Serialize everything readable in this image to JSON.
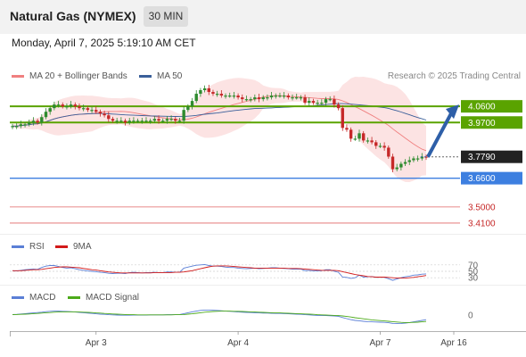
{
  "header": {
    "title": "Natural Gas (NYMEX)",
    "interval": "30 MIN"
  },
  "datetime": "Monday, April 7, 2025 5:19:10 AM CET",
  "legend": {
    "ma20": "MA 20 + Bollinger Bands",
    "ma50": "MA 50",
    "rsi": "RSI",
    "ma9": "9MA",
    "macd": "MACD",
    "macd_signal": "MACD Signal"
  },
  "credit": "Research © 2025 Trading Central",
  "colors": {
    "bullish": "#2e8b2e",
    "bearish": "#c62828",
    "band_fill": "#fbdada",
    "ma20": "#f08080",
    "ma50": "#3a5f9a",
    "resistance": "#5aa300",
    "support_main": "#3d7fe0",
    "support_minor": "#e06666",
    "last_price": "#222222",
    "target_arrow": "#2e5fa8"
  },
  "chart_data": [
    {
      "type": "candlestick",
      "x_labels": [
        "Apr 3",
        "Apr 4",
        "Apr 7",
        "Apr 16"
      ],
      "last_price": 3.779,
      "levels": [
        {
          "value": 4.06,
          "label": "4.0600",
          "role": "resistance"
        },
        {
          "value": 3.97,
          "label": "3.9700",
          "role": "resistance"
        },
        {
          "value": 3.779,
          "label": "3.7790",
          "role": "last"
        },
        {
          "value": 3.66,
          "label": "3.6600",
          "role": "support"
        },
        {
          "value": 3.5,
          "label": "3.5000",
          "role": "minor"
        },
        {
          "value": 3.41,
          "label": "3.4100",
          "role": "minor"
        }
      ],
      "target": {
        "from": 3.779,
        "to": 4.06
      },
      "close": [
        3.95,
        3.95,
        3.96,
        3.96,
        3.97,
        3.98,
        3.97,
        4.0,
        4.03,
        4.05,
        4.07,
        4.07,
        4.06,
        4.06,
        4.07,
        4.06,
        4.05,
        4.05,
        4.04,
        4.04,
        4.03,
        4.02,
        4.01,
        3.99,
        3.98,
        3.98,
        3.98,
        3.97,
        3.98,
        3.98,
        3.98,
        3.98,
        3.98,
        3.98,
        3.99,
        3.98,
        3.98,
        3.99,
        3.99,
        3.98,
        3.98,
        4.04,
        4.06,
        4.09,
        4.13,
        4.15,
        4.16,
        4.14,
        4.13,
        4.13,
        4.12,
        4.12,
        4.12,
        4.12,
        4.11,
        4.1,
        4.1,
        4.1,
        4.11,
        4.1,
        4.11,
        4.11,
        4.12,
        4.12,
        4.12,
        4.12,
        4.11,
        4.11,
        4.11,
        4.11,
        4.08,
        4.09,
        4.08,
        4.08,
        4.08,
        4.1,
        4.1,
        4.07,
        4.05,
        3.94,
        3.93,
        3.88,
        3.88,
        3.91,
        3.87,
        3.87,
        3.86,
        3.84,
        3.84,
        3.83,
        3.78,
        3.71,
        3.72,
        3.74,
        3.75,
        3.76,
        3.77,
        3.77,
        3.78,
        3.779
      ]
    },
    {
      "type": "line",
      "title": "RSI",
      "y_ticks": [
        70,
        50,
        30
      ],
      "series": [
        {
          "name": "RSI",
          "values": [
            52,
            51,
            53,
            55,
            56,
            57,
            56,
            62,
            66,
            68,
            68,
            65,
            62,
            60,
            61,
            58,
            55,
            53,
            51,
            50,
            49,
            47,
            46,
            44,
            43,
            44,
            44,
            43,
            46,
            47,
            46,
            45,
            46,
            46,
            47,
            46,
            46,
            48,
            48,
            47,
            47,
            60,
            63,
            66,
            69,
            70,
            71,
            68,
            66,
            66,
            65,
            63,
            62,
            62,
            60,
            59,
            58,
            59,
            60,
            58,
            59,
            60,
            61,
            61,
            60,
            59,
            58,
            57,
            57,
            57,
            52,
            53,
            51,
            51,
            52,
            55,
            55,
            50,
            47,
            32,
            31,
            28,
            30,
            38,
            32,
            33,
            34,
            31,
            32,
            31,
            27,
            22,
            26,
            30,
            33,
            35,
            38,
            39,
            41,
            42
          ]
        },
        {
          "name": "9MA",
          "values": [
            52,
            52,
            52,
            53,
            54,
            55,
            55,
            56,
            58,
            60,
            62,
            63,
            64,
            64,
            63,
            62,
            61,
            59,
            57,
            55,
            54,
            52,
            50,
            48,
            47,
            46,
            45,
            45,
            45,
            45,
            45,
            45,
            45,
            45,
            46,
            46,
            46,
            46,
            46,
            47,
            47,
            48,
            50,
            52,
            55,
            58,
            61,
            64,
            66,
            67,
            67,
            67,
            66,
            65,
            64,
            63,
            62,
            61,
            60,
            60,
            60,
            60,
            60,
            60,
            60,
            60,
            59,
            59,
            59,
            58,
            57,
            56,
            55,
            54,
            53,
            53,
            53,
            53,
            52,
            49,
            46,
            43,
            40,
            38,
            36,
            34,
            33,
            32,
            32,
            32,
            31,
            30,
            29,
            29,
            29,
            30,
            31,
            33,
            35,
            37
          ]
        }
      ]
    },
    {
      "type": "line",
      "title": "MACD",
      "y_ticks": [
        0
      ],
      "series": [
        {
          "name": "MACD",
          "values": [
            0.003,
            0.004,
            0.006,
            0.008,
            0.01,
            0.012,
            0.014,
            0.016,
            0.019,
            0.021,
            0.022,
            0.022,
            0.021,
            0.02,
            0.019,
            0.017,
            0.015,
            0.013,
            0.011,
            0.009,
            0.007,
            0.005,
            0.004,
            0.002,
            0.001,
            0.0,
            -0.001,
            -0.001,
            -0.001,
            0.0,
            0.0,
            0.0,
            0.0,
            0.001,
            0.001,
            0.001,
            0.001,
            0.002,
            0.002,
            0.002,
            0.003,
            0.008,
            0.013,
            0.018,
            0.022,
            0.026,
            0.028,
            0.028,
            0.027,
            0.026,
            0.024,
            0.022,
            0.021,
            0.019,
            0.017,
            0.016,
            0.015,
            0.014,
            0.013,
            0.012,
            0.011,
            0.011,
            0.01,
            0.009,
            0.009,
            0.008,
            0.007,
            0.006,
            0.005,
            0.004,
            0.002,
            0.001,
            -0.001,
            -0.002,
            -0.003,
            -0.003,
            -0.004,
            -0.005,
            -0.007,
            -0.014,
            -0.02,
            -0.026,
            -0.03,
            -0.032,
            -0.035,
            -0.037,
            -0.038,
            -0.039,
            -0.04,
            -0.041,
            -0.043,
            -0.047,
            -0.048,
            -0.047,
            -0.045,
            -0.042,
            -0.038,
            -0.034,
            -0.03,
            -0.026
          ]
        },
        {
          "name": "MACD Signal",
          "values": [
            0.002,
            0.003,
            0.004,
            0.005,
            0.006,
            0.008,
            0.009,
            0.011,
            0.013,
            0.014,
            0.016,
            0.017,
            0.018,
            0.018,
            0.018,
            0.018,
            0.017,
            0.016,
            0.015,
            0.014,
            0.012,
            0.011,
            0.009,
            0.008,
            0.006,
            0.005,
            0.004,
            0.003,
            0.002,
            0.002,
            0.001,
            0.001,
            0.001,
            0.001,
            0.001,
            0.001,
            0.001,
            0.001,
            0.001,
            0.002,
            0.002,
            0.003,
            0.005,
            0.007,
            0.01,
            0.013,
            0.016,
            0.018,
            0.02,
            0.021,
            0.022,
            0.022,
            0.022,
            0.021,
            0.021,
            0.02,
            0.019,
            0.018,
            0.017,
            0.016,
            0.015,
            0.014,
            0.013,
            0.012,
            0.012,
            0.011,
            0.01,
            0.009,
            0.008,
            0.007,
            0.006,
            0.005,
            0.004,
            0.002,
            0.001,
            0.0,
            -0.001,
            -0.002,
            -0.003,
            -0.005,
            -0.008,
            -0.011,
            -0.015,
            -0.018,
            -0.021,
            -0.024,
            -0.027,
            -0.029,
            -0.031,
            -0.033,
            -0.035,
            -0.037,
            -0.039,
            -0.041,
            -0.042,
            -0.042,
            -0.041,
            -0.04,
            -0.038,
            -0.036
          ]
        }
      ]
    }
  ]
}
